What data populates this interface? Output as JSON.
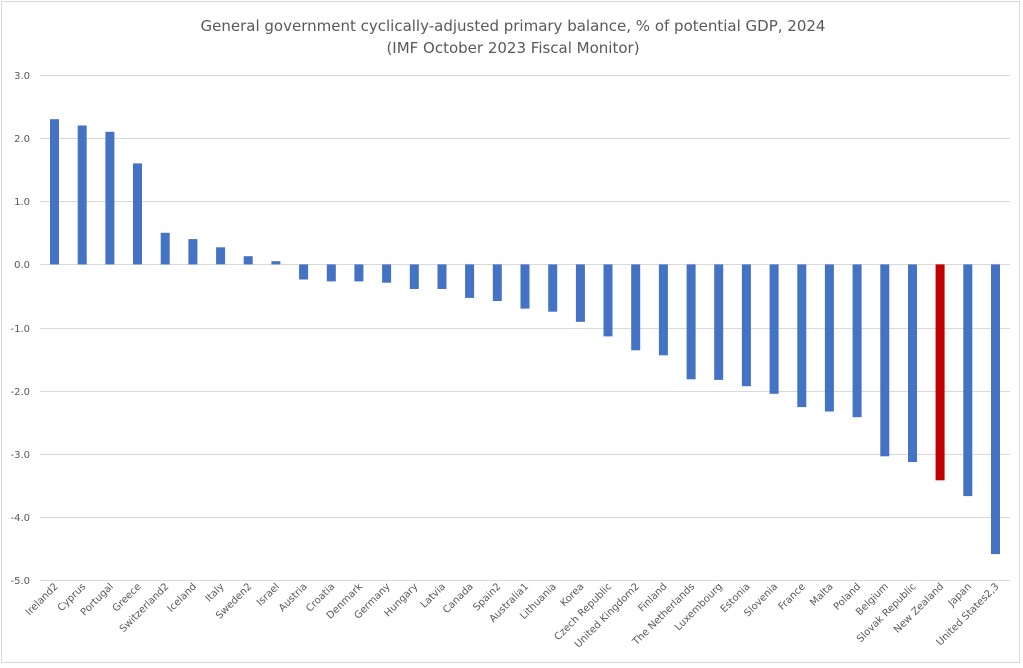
{
  "chart_data": {
    "type": "bar",
    "title": "General government cyclically-adjusted primary balance, % of potential GDP, 2024",
    "subtitle": "(IMF October 2023 Fiscal Monitor)",
    "xlabel": "",
    "ylabel": "",
    "ylim": [
      -5.0,
      3.0
    ],
    "yticks": [
      3.0,
      2.0,
      1.0,
      0.0,
      -1.0,
      -2.0,
      -3.0,
      -4.0,
      -5.0
    ],
    "ytick_labels": [
      "3.0",
      "2.0",
      "1.0",
      "0.0",
      "-1.0",
      "-2.0",
      "-3.0",
      "-4.0",
      "-5.0"
    ],
    "grid": true,
    "legend": "none",
    "default_color": "#4472C4",
    "highlight_color": "#C00000",
    "highlight_category": "New Zealand",
    "categories": [
      "Ireland2",
      "Cyprus",
      "Portugal",
      "Greece",
      "Switzerland2",
      "Iceland",
      "Italy",
      "Sweden2",
      "Israel",
      "Austria",
      "Croatia",
      "Denmark",
      "Germany",
      "Hungary",
      "Latvia",
      "Canada",
      "Spain2",
      "Australia1",
      "Lithuania",
      "Korea",
      "Czech Republic",
      "United Kingdom2",
      "Finland",
      "The Netherlands",
      "Luxembourg",
      "Estonia",
      "Slovenia",
      "France",
      "Malta",
      "Poland",
      "Belgium",
      "Slovak Republic",
      "New Zealand",
      "Japan",
      "United States2,3"
    ],
    "values": [
      2.3,
      2.2,
      2.1,
      1.6,
      0.5,
      0.4,
      0.27,
      0.13,
      0.05,
      -0.24,
      -0.27,
      -0.27,
      -0.29,
      -0.39,
      -0.39,
      -0.53,
      -0.58,
      -0.7,
      -0.75,
      -0.91,
      -1.14,
      -1.36,
      -1.44,
      -1.82,
      -1.83,
      -1.93,
      -2.05,
      -2.26,
      -2.33,
      -2.42,
      -3.04,
      -3.13,
      -3.42,
      -3.67,
      -4.59
    ]
  }
}
